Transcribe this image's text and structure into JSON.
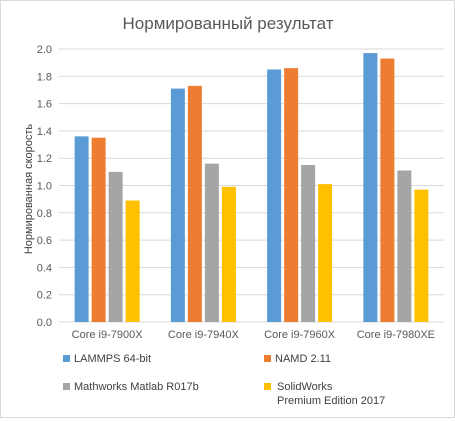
{
  "chart_data": {
    "type": "bar",
    "title": "Нормированный результат",
    "xlabel": "",
    "ylabel": "Нормированная скорость",
    "ylim": [
      0,
      2.0
    ],
    "yticks": [
      "0.0",
      "0.2",
      "0.4",
      "0.6",
      "0.8",
      "1.0",
      "1.2",
      "1.4",
      "1.6",
      "1.8",
      "2.0"
    ],
    "grid": true,
    "legend_position": "bottom",
    "categories": [
      "Core i9-7900X",
      "Core i9-7940X",
      "Core i9-7960X",
      "Core i9-7980XE"
    ],
    "series": [
      {
        "name": "LAMMPS 64-bit",
        "color": "#5B9BD5",
        "values": [
          1.36,
          1.71,
          1.85,
          1.97
        ]
      },
      {
        "name": "NAMD 2.11",
        "color": "#ED7D31",
        "values": [
          1.35,
          1.73,
          1.86,
          1.93
        ]
      },
      {
        "name": "Mathworks Matlab R017b",
        "color": "#A5A5A5",
        "values": [
          1.1,
          1.16,
          1.15,
          1.11
        ]
      },
      {
        "name": "SolidWorks Premium Edition 2017",
        "color": "#FFC000",
        "values": [
          0.89,
          0.99,
          1.01,
          0.97
        ]
      }
    ]
  }
}
